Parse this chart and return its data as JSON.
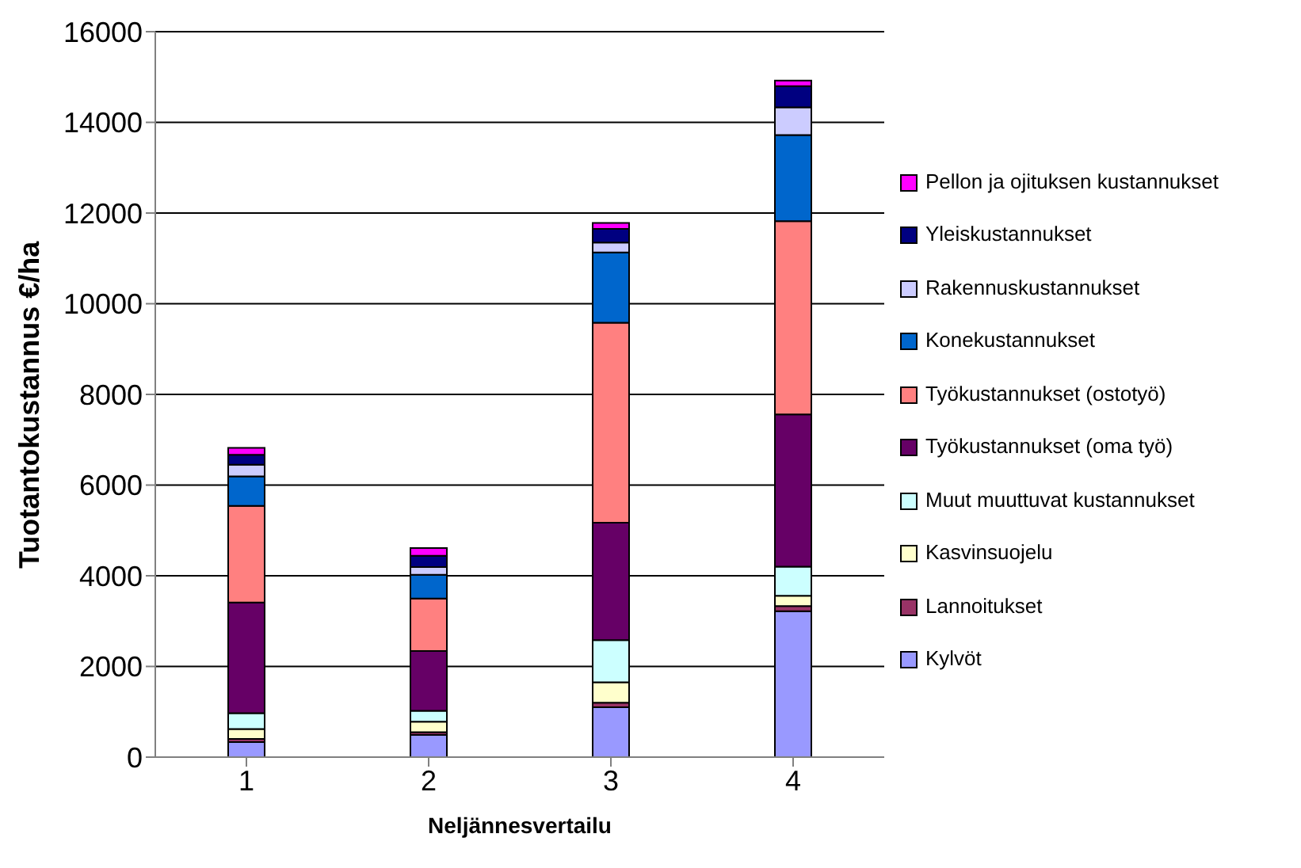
{
  "chart_data": {
    "type": "bar",
    "stacked": true,
    "xlabel": "Neljännesvertailu",
    "ylabel": "Tuotantokustannus €/ha",
    "categories": [
      "1",
      "2",
      "3",
      "4"
    ],
    "series": [
      {
        "name": "Kylvöt",
        "color": "#9999ff",
        "values": [
          330,
          490,
          1100,
          3220
        ]
      },
      {
        "name": "Lannoitukset",
        "color": "#993366",
        "values": [
          70,
          60,
          100,
          110
        ]
      },
      {
        "name": "Kasvinsuojelu",
        "color": "#ffffcc",
        "values": [
          220,
          230,
          450,
          230
        ]
      },
      {
        "name": "Muut muuttuvat kustannukset",
        "color": "#ccffff",
        "values": [
          350,
          240,
          930,
          640
        ]
      },
      {
        "name": "Työkustannukset (oma työ)",
        "color": "#660066",
        "values": [
          2440,
          1320,
          2590,
          3360
        ]
      },
      {
        "name": "Työkustannukset (ostotyö)",
        "color": "#ff8080",
        "values": [
          2130,
          1160,
          4410,
          4260
        ]
      },
      {
        "name": "Konekustannukset",
        "color": "#0066cc",
        "values": [
          650,
          520,
          1550,
          1900
        ]
      },
      {
        "name": "Rakennuskustannukset",
        "color": "#ccccff",
        "values": [
          260,
          170,
          220,
          610
        ]
      },
      {
        "name": "Yleiskustannukset",
        "color": "#000080",
        "values": [
          220,
          250,
          300,
          470
        ]
      },
      {
        "name": "Pellon ja ojituksen kustannukset",
        "color": "#ff00ff",
        "values": [
          150,
          170,
          130,
          120
        ]
      }
    ],
    "ylim": [
      0,
      16000
    ],
    "yticks": [
      0,
      2000,
      4000,
      6000,
      8000,
      10000,
      12000,
      14000,
      16000
    ],
    "grid": "y",
    "legend": "right"
  }
}
